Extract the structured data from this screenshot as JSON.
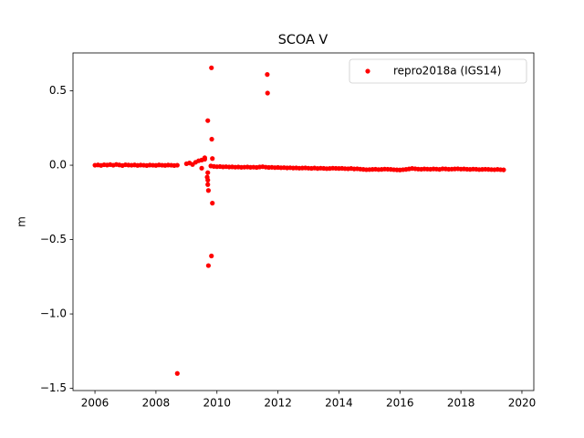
{
  "chart_data": {
    "type": "scatter",
    "title": "SCOA V",
    "ylabel": "m",
    "xlim": [
      2005.28,
      2020.39
    ],
    "ylim": [
      -1.515,
      0.755
    ],
    "xticks": [
      2006,
      2008,
      2010,
      2012,
      2014,
      2016,
      2018,
      2020
    ],
    "yticks": [
      {
        "value": -1.5,
        "label": "−1.5"
      },
      {
        "value": -1.0,
        "label": "−1.0"
      },
      {
        "value": -0.5,
        "label": "−0.5"
      },
      {
        "value": 0.0,
        "label": "0.0"
      },
      0.5
    ],
    "legend": "upper right",
    "series": [
      {
        "name": "repro2018a (IGS14)",
        "color": "#ff0000",
        "x": [
          2006.0,
          2006.1,
          2006.2,
          2006.3,
          2006.4,
          2006.5,
          2006.6,
          2006.7,
          2006.8,
          2006.9,
          2007.0,
          2007.1,
          2007.2,
          2007.3,
          2007.4,
          2007.5,
          2007.6,
          2007.7,
          2007.8,
          2007.9,
          2008.0,
          2008.1,
          2008.2,
          2008.3,
          2008.4,
          2008.5,
          2008.6,
          2008.7,
          2009.0,
          2009.1,
          2009.2,
          2009.3,
          2009.4,
          2009.5,
          2009.6,
          2009.7,
          2009.8,
          2009.9,
          2010.0,
          2010.1,
          2010.2,
          2010.3,
          2010.4,
          2010.5,
          2010.6,
          2010.7,
          2010.8,
          2010.9,
          2011.0,
          2011.1,
          2011.2,
          2011.3,
          2011.4,
          2011.5,
          2011.6,
          2011.7,
          2011.8,
          2011.9,
          2012.0,
          2012.1,
          2012.2,
          2012.3,
          2012.4,
          2012.5,
          2012.6,
          2012.7,
          2012.8,
          2012.9,
          2013.0,
          2013.1,
          2013.2,
          2013.3,
          2013.4,
          2013.5,
          2013.6,
          2013.7,
          2013.8,
          2013.9,
          2014.0,
          2014.1,
          2014.2,
          2014.3,
          2014.4,
          2014.5,
          2014.6,
          2014.7,
          2014.8,
          2014.9,
          2015.0,
          2015.1,
          2015.2,
          2015.3,
          2015.4,
          2015.5,
          2015.6,
          2015.7,
          2015.8,
          2015.9,
          2016.0,
          2016.1,
          2016.2,
          2016.3,
          2016.4,
          2016.5,
          2016.6,
          2016.7,
          2016.8,
          2016.9,
          2017.0,
          2017.1,
          2017.2,
          2017.3,
          2017.4,
          2017.5,
          2017.6,
          2017.7,
          2017.8,
          2017.9,
          2018.0,
          2018.1,
          2018.2,
          2018.3,
          2018.4,
          2018.5,
          2018.6,
          2018.7,
          2018.8,
          2018.9,
          2019.0,
          2019.1,
          2019.2,
          2019.3,
          2019.4,
          2008.7,
          2009.7,
          2009.82,
          2009.83,
          2009.85,
          2009.85,
          2009.82,
          2009.72,
          2011.65,
          2011.66,
          2009.7,
          2009.7,
          2009.72,
          2009.68,
          2009.6,
          2009.5
        ],
        "values": [
          0.0,
          0.002,
          -0.001,
          0.003,
          0.001,
          0.004,
          0.0,
          0.005,
          0.002,
          -0.002,
          0.003,
          0.001,
          0.0,
          0.002,
          -0.001,
          0.001,
          0.0,
          -0.002,
          0.001,
          0.0,
          -0.001,
          0.002,
          0.0,
          -0.001,
          0.001,
          0.0,
          -0.002,
          0.0,
          0.01,
          0.015,
          0.005,
          0.02,
          0.03,
          0.035,
          0.04,
          -0.05,
          -0.005,
          -0.008,
          -0.01,
          -0.009,
          -0.011,
          -0.01,
          -0.012,
          -0.011,
          -0.013,
          -0.012,
          -0.014,
          -0.013,
          -0.012,
          -0.014,
          -0.013,
          -0.015,
          -0.012,
          -0.01,
          -0.013,
          -0.015,
          -0.014,
          -0.016,
          -0.015,
          -0.017,
          -0.016,
          -0.018,
          -0.017,
          -0.019,
          -0.018,
          -0.02,
          -0.019,
          -0.018,
          -0.02,
          -0.021,
          -0.019,
          -0.022,
          -0.02,
          -0.021,
          -0.023,
          -0.022,
          -0.02,
          -0.021,
          -0.022,
          -0.021,
          -0.023,
          -0.024,
          -0.022,
          -0.025,
          -0.024,
          -0.026,
          -0.028,
          -0.03,
          -0.029,
          -0.028,
          -0.027,
          -0.029,
          -0.028,
          -0.026,
          -0.027,
          -0.028,
          -0.03,
          -0.031,
          -0.032,
          -0.03,
          -0.028,
          -0.025,
          -0.022,
          -0.024,
          -0.026,
          -0.027,
          -0.025,
          -0.026,
          -0.027,
          -0.025,
          -0.026,
          -0.028,
          -0.024,
          -0.025,
          -0.027,
          -0.026,
          -0.025,
          -0.024,
          -0.026,
          -0.025,
          -0.027,
          -0.028,
          -0.026,
          -0.027,
          -0.029,
          -0.028,
          -0.027,
          -0.028,
          -0.029,
          -0.03,
          -0.028,
          -0.03,
          -0.031,
          -1.4,
          0.3,
          0.655,
          0.175,
          0.045,
          -0.255,
          -0.61,
          -0.675,
          0.61,
          0.485,
          -0.1,
          -0.13,
          -0.17,
          -0.08,
          0.05,
          -0.02
        ]
      }
    ]
  }
}
